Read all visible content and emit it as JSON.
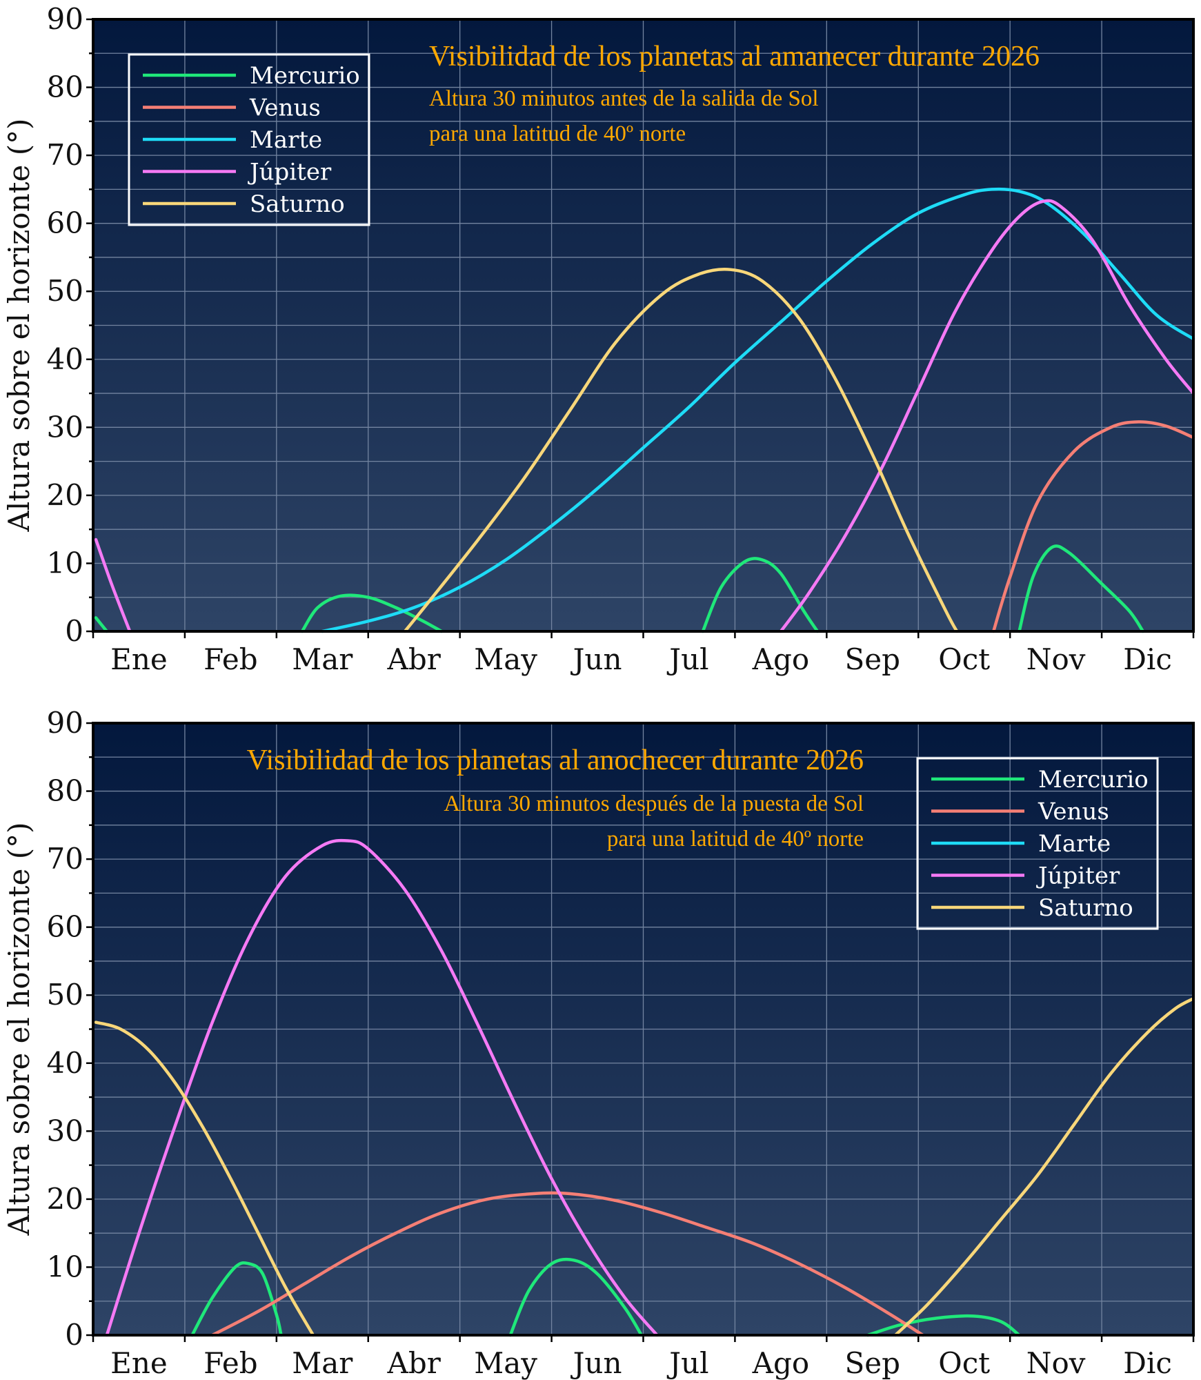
{
  "colors": {
    "bg_top": "#03183d",
    "bg_bottom": "#2e4466",
    "grid": "#7384a0",
    "frame": "#000000",
    "title": "#ffa800",
    "legend_border": "#ffffff"
  },
  "chart_data": [
    {
      "type": "line",
      "title": "Visibilidad de los planetas al amanecer durante 2026",
      "subtitle_1": "Altura 30 minutos antes de la salida de Sol",
      "subtitle_2": "para una latitud de 40º norte",
      "ylabel": "Altura sobre el horizonte (°)",
      "xlabel": "",
      "xlim": [
        0,
        12
      ],
      "ylim": [
        0,
        90
      ],
      "yticks": [
        0,
        10,
        20,
        30,
        40,
        50,
        60,
        70,
        80,
        90
      ],
      "months": [
        "Ene",
        "Feb",
        "Mar",
        "Abr",
        "May",
        "Jun",
        "Jul",
        "Ago",
        "Sep",
        "Oct",
        "Nov",
        "Dic"
      ],
      "legend_position": "top-left",
      "grid": true,
      "series": [
        {
          "name": "Mercurio",
          "color": "#1fe87a",
          "segments": [
            [
              [
                0.03,
                2.0
              ],
              [
                0.15,
                0
              ]
            ],
            [
              [
                2.28,
                0
              ],
              [
                2.45,
                3.5
              ],
              [
                2.7,
                5.2
              ],
              [
                3.0,
                5.0
              ],
              [
                3.3,
                3.5
              ],
              [
                3.6,
                1.5
              ],
              [
                3.8,
                0
              ]
            ],
            [
              [
                6.65,
                0
              ],
              [
                6.85,
                6.5
              ],
              [
                7.1,
                10.2
              ],
              [
                7.3,
                10.5
              ],
              [
                7.5,
                8.5
              ],
              [
                7.75,
                3.0
              ],
              [
                7.9,
                0
              ]
            ],
            [
              [
                10.1,
                0
              ],
              [
                10.25,
                8.0
              ],
              [
                10.45,
                12.3
              ],
              [
                10.65,
                11.5
              ],
              [
                11.0,
                7.0
              ],
              [
                11.3,
                3.0
              ],
              [
                11.45,
                0
              ]
            ]
          ]
        },
        {
          "name": "Venus",
          "color": "#f57f75",
          "segments": [
            [
              [
                9.82,
                0
              ],
              [
                10.0,
                8.0
              ],
              [
                10.3,
                19.0
              ],
              [
                10.7,
                26.5
              ],
              [
                11.1,
                30.0
              ],
              [
                11.4,
                30.8
              ],
              [
                11.7,
                30.2
              ],
              [
                12.0,
                28.5
              ]
            ]
          ]
        },
        {
          "name": "Marte",
          "color": "#1edcf7",
          "segments": [
            [
              [
                2.5,
                0
              ],
              [
                3.0,
                1.5
              ],
              [
                3.5,
                3.5
              ],
              [
                4.0,
                6.5
              ],
              [
                4.5,
                10.5
              ],
              [
                5.0,
                15.5
              ],
              [
                5.5,
                21.0
              ],
              [
                6.0,
                27.0
              ],
              [
                6.5,
                33.0
              ],
              [
                7.0,
                39.5
              ],
              [
                7.5,
                45.5
              ],
              [
                8.0,
                51.5
              ],
              [
                8.5,
                57.0
              ],
              [
                9.0,
                61.5
              ],
              [
                9.5,
                64.2
              ],
              [
                9.8,
                65.0
              ],
              [
                10.1,
                64.7
              ],
              [
                10.4,
                63.0
              ],
              [
                10.8,
                58.5
              ],
              [
                11.2,
                52.5
              ],
              [
                11.6,
                46.5
              ],
              [
                12.0,
                43.0
              ]
            ]
          ]
        },
        {
          "name": "Júpiter",
          "color": "#f57af5",
          "segments": [
            [
              [
                0.03,
                13.5
              ],
              [
                0.2,
                7.0
              ],
              [
                0.4,
                0
              ]
            ],
            [
              [
                7.5,
                0
              ],
              [
                7.8,
                5.5
              ],
              [
                8.2,
                14.0
              ],
              [
                8.6,
                24.0
              ],
              [
                9.0,
                35.5
              ],
              [
                9.4,
                47.0
              ],
              [
                9.8,
                56.0
              ],
              [
                10.1,
                61.0
              ],
              [
                10.35,
                63.2
              ],
              [
                10.55,
                62.5
              ],
              [
                10.9,
                57.5
              ],
              [
                11.3,
                48.0
              ],
              [
                11.7,
                40.0
              ],
              [
                12.0,
                35.0
              ]
            ]
          ]
        },
        {
          "name": "Saturno",
          "color": "#f8d77a",
          "segments": [
            [
              [
                3.4,
                0
              ],
              [
                3.7,
                5.0
              ],
              [
                4.2,
                13.5
              ],
              [
                4.7,
                22.5
              ],
              [
                5.2,
                32.5
              ],
              [
                5.7,
                42.5
              ],
              [
                6.2,
                49.5
              ],
              [
                6.6,
                52.5
              ],
              [
                6.95,
                53.2
              ],
              [
                7.3,
                51.5
              ],
              [
                7.7,
                46.0
              ],
              [
                8.1,
                37.0
              ],
              [
                8.5,
                26.0
              ],
              [
                8.9,
                14.0
              ],
              [
                9.3,
                3.0
              ],
              [
                9.42,
                0
              ]
            ]
          ]
        }
      ]
    },
    {
      "type": "line",
      "title": "Visibilidad de los planetas al anochecer durante 2026",
      "subtitle_1": "Altura 30 minutos después de la puesta de Sol",
      "subtitle_2": "para una latitud de 40º norte",
      "ylabel": "Altura sobre el horizonte (°)",
      "xlabel": "",
      "xlim": [
        0,
        12
      ],
      "ylim": [
        0,
        90
      ],
      "yticks": [
        0,
        10,
        20,
        30,
        40,
        50,
        60,
        70,
        80,
        90
      ],
      "months": [
        "Ene",
        "Feb",
        "Mar",
        "Abr",
        "May",
        "Jun",
        "Jul",
        "Ago",
        "Sep",
        "Oct",
        "Nov",
        "Dic"
      ],
      "legend_position": "top-right",
      "grid": true,
      "series": [
        {
          "name": "Mercurio",
          "color": "#1fe87a",
          "segments": [
            [
              [
                1.08,
                0
              ],
              [
                1.3,
                5.5
              ],
              [
                1.55,
                10.0
              ],
              [
                1.7,
                10.5
              ],
              [
                1.85,
                9.0
              ],
              [
                2.0,
                3.0
              ],
              [
                2.05,
                0
              ]
            ],
            [
              [
                4.55,
                0
              ],
              [
                4.75,
                6.5
              ],
              [
                5.0,
                10.5
              ],
              [
                5.25,
                11.0
              ],
              [
                5.5,
                9.0
              ],
              [
                5.8,
                4.0
              ],
              [
                5.98,
                0
              ]
            ],
            [
              [
                8.45,
                0
              ],
              [
                8.8,
                1.5
              ],
              [
                9.2,
                2.5
              ],
              [
                9.6,
                2.8
              ],
              [
                9.9,
                2.0
              ],
              [
                10.1,
                0
              ]
            ]
          ]
        },
        {
          "name": "Venus",
          "color": "#f57f75",
          "segments": [
            [
              [
                1.3,
                0
              ],
              [
                1.8,
                3.5
              ],
              [
                2.3,
                7.5
              ],
              [
                2.8,
                11.5
              ],
              [
                3.3,
                15.0
              ],
              [
                3.8,
                18.0
              ],
              [
                4.3,
                20.0
              ],
              [
                4.8,
                20.8
              ],
              [
                5.2,
                20.8
              ],
              [
                5.7,
                19.8
              ],
              [
                6.2,
                18.0
              ],
              [
                6.7,
                15.8
              ],
              [
                7.2,
                13.5
              ],
              [
                7.7,
                10.5
              ],
              [
                8.2,
                7.0
              ],
              [
                8.7,
                3.0
              ],
              [
                9.05,
                0
              ]
            ]
          ]
        },
        {
          "name": "Marte",
          "color": "#1edcf7",
          "segments": []
        },
        {
          "name": "Júpiter",
          "color": "#f57af5",
          "segments": [
            [
              [
                0.15,
                0
              ],
              [
                0.5,
                15.0
              ],
              [
                0.9,
                31.0
              ],
              [
                1.3,
                46.0
              ],
              [
                1.7,
                58.5
              ],
              [
                2.1,
                67.5
              ],
              [
                2.5,
                72.0
              ],
              [
                2.78,
                72.7
              ],
              [
                3.0,
                71.5
              ],
              [
                3.4,
                65.5
              ],
              [
                3.8,
                56.5
              ],
              [
                4.2,
                45.5
              ],
              [
                4.6,
                34.0
              ],
              [
                5.0,
                23.0
              ],
              [
                5.4,
                13.5
              ],
              [
                5.8,
                5.5
              ],
              [
                6.15,
                0
              ]
            ]
          ]
        },
        {
          "name": "Saturno",
          "color": "#f8d77a",
          "segments": [
            [
              [
                0.03,
                46.0
              ],
              [
                0.3,
                45.0
              ],
              [
                0.6,
                42.0
              ],
              [
                0.9,
                37.0
              ],
              [
                1.2,
                30.5
              ],
              [
                1.5,
                23.0
              ],
              [
                1.8,
                15.0
              ],
              [
                2.1,
                7.0
              ],
              [
                2.4,
                0
              ]
            ],
            [
              [
                8.75,
                0
              ],
              [
                9.1,
                4.5
              ],
              [
                9.5,
                10.5
              ],
              [
                9.9,
                17.0
              ],
              [
                10.3,
                23.5
              ],
              [
                10.7,
                31.0
              ],
              [
                11.1,
                38.5
              ],
              [
                11.5,
                44.5
              ],
              [
                11.8,
                48.0
              ],
              [
                12.0,
                49.5
              ]
            ]
          ]
        }
      ]
    }
  ]
}
